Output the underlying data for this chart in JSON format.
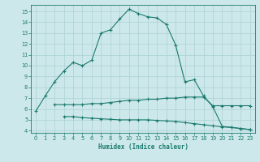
{
  "xlabel": "Humidex (Indice chaleur)",
  "bg_color": "#cde8ea",
  "grid_color": "#b0d4d6",
  "line_color": "#1a7a6e",
  "xlim": [
    -0.5,
    23.5
  ],
  "ylim": [
    3.8,
    15.6
  ],
  "yticks": [
    4,
    5,
    6,
    7,
    8,
    9,
    10,
    11,
    12,
    13,
    14,
    15
  ],
  "xticks": [
    0,
    1,
    2,
    3,
    4,
    5,
    6,
    7,
    8,
    9,
    10,
    11,
    12,
    13,
    14,
    15,
    16,
    17,
    18,
    19,
    20,
    21,
    22,
    23
  ],
  "curve1_x": [
    0,
    1,
    2,
    3,
    4,
    5,
    6,
    7,
    8,
    9,
    10,
    11,
    12,
    13,
    14,
    15,
    16,
    17,
    18,
    19,
    20,
    21,
    22,
    23
  ],
  "curve1_y": [
    5.8,
    7.2,
    8.5,
    9.5,
    10.3,
    10.0,
    10.5,
    13.0,
    13.3,
    14.3,
    15.2,
    14.8,
    14.5,
    14.4,
    13.8,
    11.9,
    8.5,
    8.7,
    7.2,
    6.2,
    4.4,
    4.3,
    4.2,
    4.1
  ],
  "curve2_x": [
    2,
    3,
    4,
    5,
    6,
    7,
    8,
    9,
    10,
    11,
    12,
    13,
    14,
    15,
    16,
    17,
    18,
    19,
    20,
    21,
    22,
    23
  ],
  "curve2_y": [
    6.4,
    6.4,
    6.4,
    6.4,
    6.5,
    6.5,
    6.6,
    6.7,
    6.8,
    6.8,
    6.9,
    6.9,
    7.0,
    7.0,
    7.1,
    7.1,
    7.1,
    6.3,
    6.3,
    6.3,
    6.3,
    6.3
  ],
  "curve3_x": [
    3,
    4,
    5,
    6,
    7,
    8,
    9,
    10,
    11,
    12,
    13,
    14,
    15,
    16,
    17,
    18,
    19,
    20,
    21,
    22,
    23
  ],
  "curve3_y": [
    5.3,
    5.3,
    5.2,
    5.15,
    5.1,
    5.05,
    5.0,
    5.0,
    5.0,
    5.0,
    4.95,
    4.9,
    4.85,
    4.75,
    4.65,
    4.55,
    4.45,
    4.35,
    4.3,
    4.2,
    4.1
  ]
}
